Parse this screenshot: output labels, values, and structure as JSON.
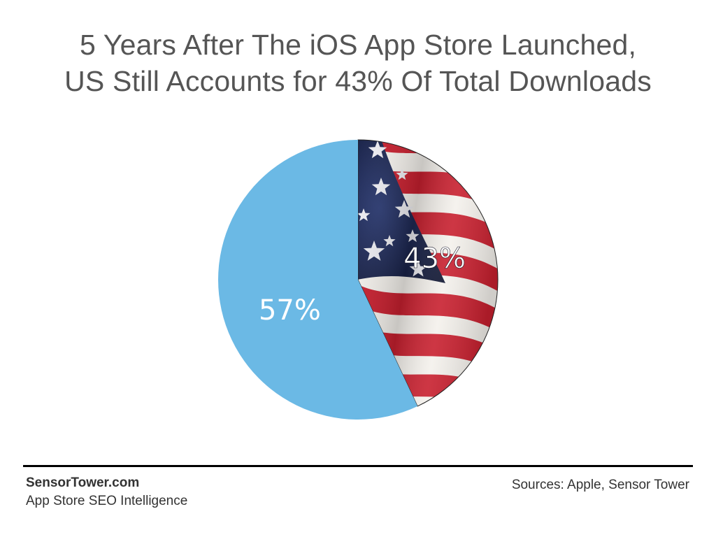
{
  "chart_data": {
    "type": "pie",
    "title_lines": [
      "5 Years After The iOS App Store Launched,",
      "US Still Accounts for 43% Of Total Downloads"
    ],
    "slices": [
      {
        "label": "43%",
        "value": 43,
        "fill": "us-flag"
      },
      {
        "label": "57%",
        "value": 57,
        "color": "#6BB9E5"
      }
    ]
  },
  "footer": {
    "brand": "SensorTower.com",
    "tagline": "App Store SEO Intelligence",
    "sources": "Sources: Apple, Sensor Tower"
  },
  "colors": {
    "title": "#555555",
    "rest_of_world": "#6BB9E5",
    "flag_red": "#C8202F",
    "flag_blue": "#1B2550",
    "flag_white": "#F4F1EC"
  }
}
